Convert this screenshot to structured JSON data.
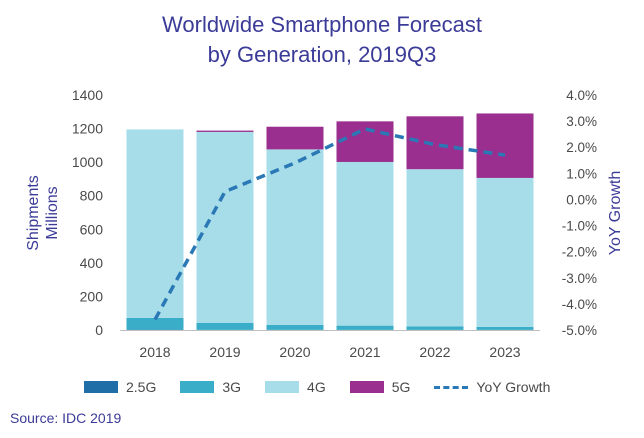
{
  "chart_data": {
    "type": "bar",
    "title": [
      "Worldwide Smartphone Forecast",
      "by Generation, 2019Q3"
    ],
    "ylabel": [
      "Shipments",
      "Millions"
    ],
    "y2label": "YoY Growth",
    "categories": [
      "2018",
      "2019",
      "2020",
      "2021",
      "2022",
      "2023"
    ],
    "ylim": [
      0,
      1400
    ],
    "yticks": [
      "0",
      "200",
      "400",
      "600",
      "800",
      "1000",
      "1200",
      "1400"
    ],
    "y2lim": [
      -5.0,
      4.0
    ],
    "y2ticks": [
      "-5.0%",
      "-4.0%",
      "-3.0%",
      "-2.0%",
      "-1.0%",
      "0.0%",
      "1.0%",
      "2.0%",
      "3.0%",
      "4.0%"
    ],
    "stacked": true,
    "series": [
      {
        "name": "2.5G",
        "color": "#1f6ea8",
        "values": [
          2,
          1,
          1,
          1,
          1,
          1
        ]
      },
      {
        "name": "3G",
        "color": "#3aaec8",
        "values": [
          70,
          42,
          30,
          25,
          20,
          18
        ]
      },
      {
        "name": "4G",
        "color": "#a7dde8",
        "values": [
          1123,
          1137,
          1045,
          975,
          937,
          887
        ]
      },
      {
        "name": "5G",
        "color": "#9a2f8f",
        "values": [
          0,
          8,
          135,
          242,
          315,
          384
        ]
      }
    ],
    "line_series": {
      "name": "YoY Growth",
      "color": "#2a78b5",
      "style": "dashed",
      "values": [
        -4.6,
        0.3,
        1.4,
        2.7,
        2.1,
        1.7
      ]
    },
    "grid": false,
    "legend_position": "bottom"
  },
  "source": "Source: IDC 2019"
}
